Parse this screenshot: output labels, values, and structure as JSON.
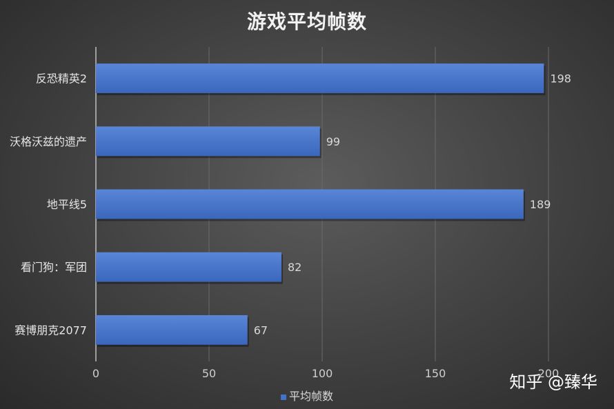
{
  "chart_data": {
    "type": "bar",
    "orientation": "horizontal",
    "title": "游戏平均帧数",
    "categories": [
      "反恐精英2",
      "沃格沃兹的遗产",
      "地平线5",
      "看门狗：军团",
      "赛博朋克2077"
    ],
    "series": [
      {
        "name": "平均帧数",
        "values": [
          198,
          99,
          189,
          82,
          67
        ],
        "color": "#4472c4"
      }
    ],
    "xlim": [
      0,
      200
    ],
    "x_ticks": [
      0,
      50,
      100,
      150,
      200
    ],
    "grid": true,
    "legend_position": "bottom",
    "data_labels": true
  },
  "watermark": "知乎 @臻华"
}
